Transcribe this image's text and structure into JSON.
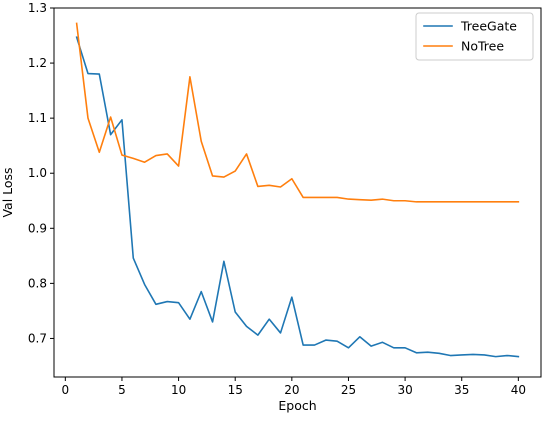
{
  "chart_data": {
    "type": "line",
    "title": "",
    "xlabel": "Epoch",
    "ylabel": "Val Loss",
    "xlim": [
      -1,
      42
    ],
    "ylim": [
      0.63,
      1.3
    ],
    "xticks": [
      0,
      5,
      10,
      15,
      20,
      25,
      30,
      35,
      40
    ],
    "yticks": [
      0.7,
      0.8,
      0.9,
      1.0,
      1.1,
      1.2,
      1.3
    ],
    "ytick_labels": [
      "0.7",
      "0.8",
      "0.9",
      "1.0",
      "1.1",
      "1.2",
      "1.3"
    ],
    "grid": false,
    "legend": "top-right",
    "x": [
      1,
      2,
      3,
      4,
      5,
      6,
      7,
      8,
      9,
      10,
      11,
      12,
      13,
      14,
      15,
      16,
      17,
      18,
      19,
      20,
      21,
      22,
      23,
      24,
      25,
      26,
      27,
      28,
      29,
      30,
      31,
      32,
      33,
      34,
      35,
      36,
      37,
      38,
      39,
      40
    ],
    "series": [
      {
        "name": "TreeGate",
        "color": "#1f77b4",
        "values": [
          1.247,
          1.181,
          1.18,
          1.07,
          1.097,
          0.846,
          0.798,
          0.762,
          0.767,
          0.765,
          0.735,
          0.785,
          0.73,
          0.84,
          0.748,
          0.722,
          0.706,
          0.735,
          0.71,
          0.775,
          0.688,
          0.688,
          0.697,
          0.695,
          0.683,
          0.703,
          0.686,
          0.693,
          0.683,
          0.683,
          0.674,
          0.675,
          0.673,
          0.669,
          0.67,
          0.671,
          0.67,
          0.667,
          0.669,
          0.667
        ]
      },
      {
        "name": "NoTree",
        "color": "#ff7f0e",
        "values": [
          1.272,
          1.1,
          1.038,
          1.102,
          1.033,
          1.027,
          1.02,
          1.032,
          1.035,
          1.013,
          1.175,
          1.058,
          0.995,
          0.993,
          1.004,
          1.035,
          0.976,
          0.978,
          0.975,
          0.99,
          0.956,
          0.956,
          0.956,
          0.956,
          0.953,
          0.952,
          0.951,
          0.953,
          0.95,
          0.95,
          0.948,
          0.948,
          0.948,
          0.948,
          0.948,
          0.948,
          0.948,
          0.948,
          0.948,
          0.948
        ]
      }
    ]
  }
}
